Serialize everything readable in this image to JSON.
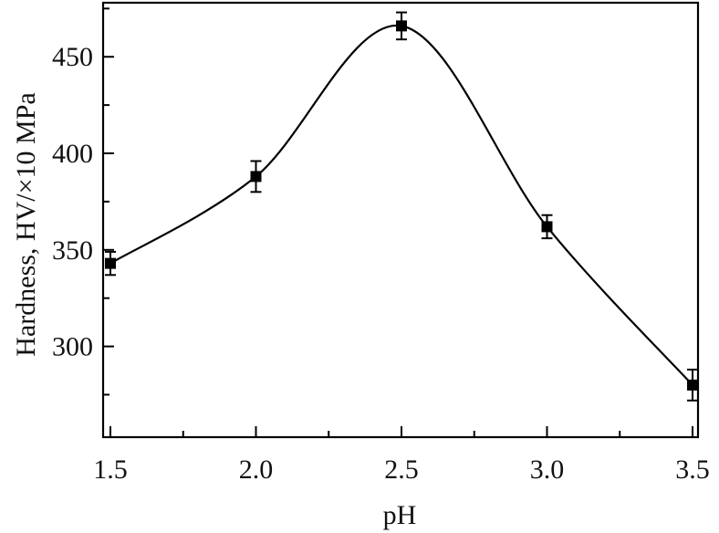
{
  "chart_data": {
    "type": "scatter",
    "xlabel": "pH",
    "ylabel": "Hardness, HV/×10 MPa",
    "xlim": [
      1.5,
      3.5
    ],
    "ylim": [
      253,
      478
    ],
    "x_ticks": [
      1.5,
      2.0,
      2.5,
      3.0,
      3.5
    ],
    "x_tick_labels": [
      "1.5",
      "2.0",
      "2.5",
      "3.0",
      "3.5"
    ],
    "y_ticks": [
      300,
      350,
      400,
      450
    ],
    "y_tick_labels": [
      "300",
      "350",
      "400",
      "450"
    ],
    "grid": false,
    "series": [
      {
        "x": [
          1.5,
          2.0,
          2.5,
          3.0,
          3.5
        ],
        "y": [
          343,
          388,
          466,
          362,
          280
        ],
        "error": [
          6,
          8,
          7,
          6,
          8
        ],
        "marker": "square",
        "color": "#000000",
        "fit_curve": true
      }
    ]
  }
}
